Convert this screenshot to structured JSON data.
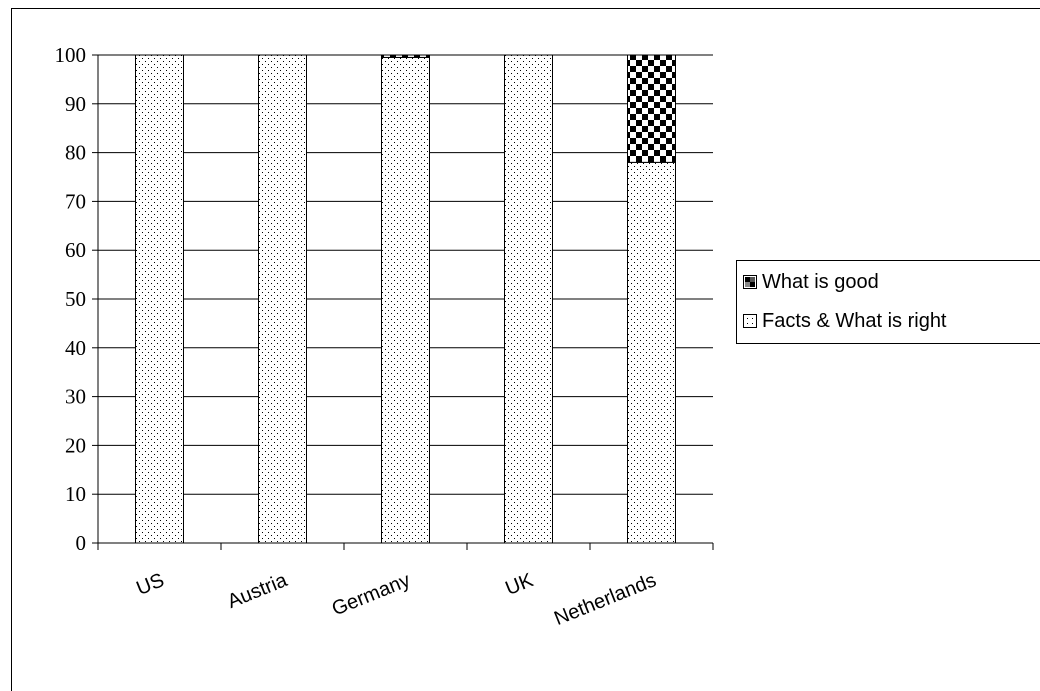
{
  "chart_data": {
    "type": "bar",
    "stacked": true,
    "categories": [
      "US",
      "Austria",
      "Germany",
      "UK",
      "Netherlands"
    ],
    "series": [
      {
        "name": "Facts & What is right",
        "values": [
          100,
          100,
          99.5,
          100,
          78
        ],
        "pattern": "dots",
        "color": "#ffffff"
      },
      {
        "name": "What is good",
        "values": [
          0,
          0,
          0.5,
          0,
          22
        ],
        "pattern": "checker",
        "color": "#000000"
      }
    ],
    "ylim": [
      0,
      100
    ],
    "yticks": [
      "0",
      "10",
      "20",
      "30",
      "40",
      "50",
      "60",
      "70",
      "80",
      "90",
      "100"
    ],
    "grid": true,
    "legend_position": "right"
  },
  "legend": {
    "items": [
      {
        "label": "What is good",
        "pattern": "checker"
      },
      {
        "label": "Facts & What is right",
        "pattern": "dots"
      }
    ]
  }
}
